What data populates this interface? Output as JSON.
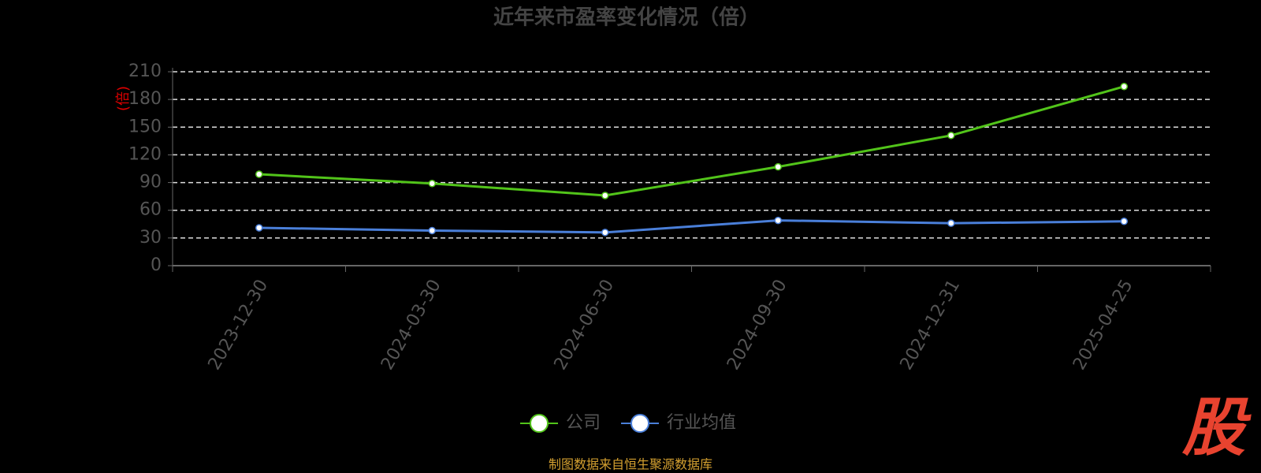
{
  "chart_data": {
    "type": "line",
    "title": "近年来市盈率变化情况（倍）",
    "y_label": "(倍)",
    "categories": [
      "2023-12-30",
      "2024-03-30",
      "2024-06-30",
      "2024-09-30",
      "2024-12-31",
      "2025-04-25"
    ],
    "series": [
      {
        "name": "公司",
        "color": "#52c41a",
        "values": [
          99,
          89,
          76,
          107,
          141,
          194
        ]
      },
      {
        "name": "行业均值",
        "color": "#4a7fd9",
        "values": [
          41,
          38,
          36,
          49,
          46,
          48
        ]
      }
    ],
    "ylim": [
      0,
      210
    ],
    "yticks": [
      0,
      30,
      60,
      90,
      120,
      150,
      180,
      210
    ],
    "grid": true,
    "source": "制图数据来自恒生聚源数据库",
    "watermark": "股"
  }
}
